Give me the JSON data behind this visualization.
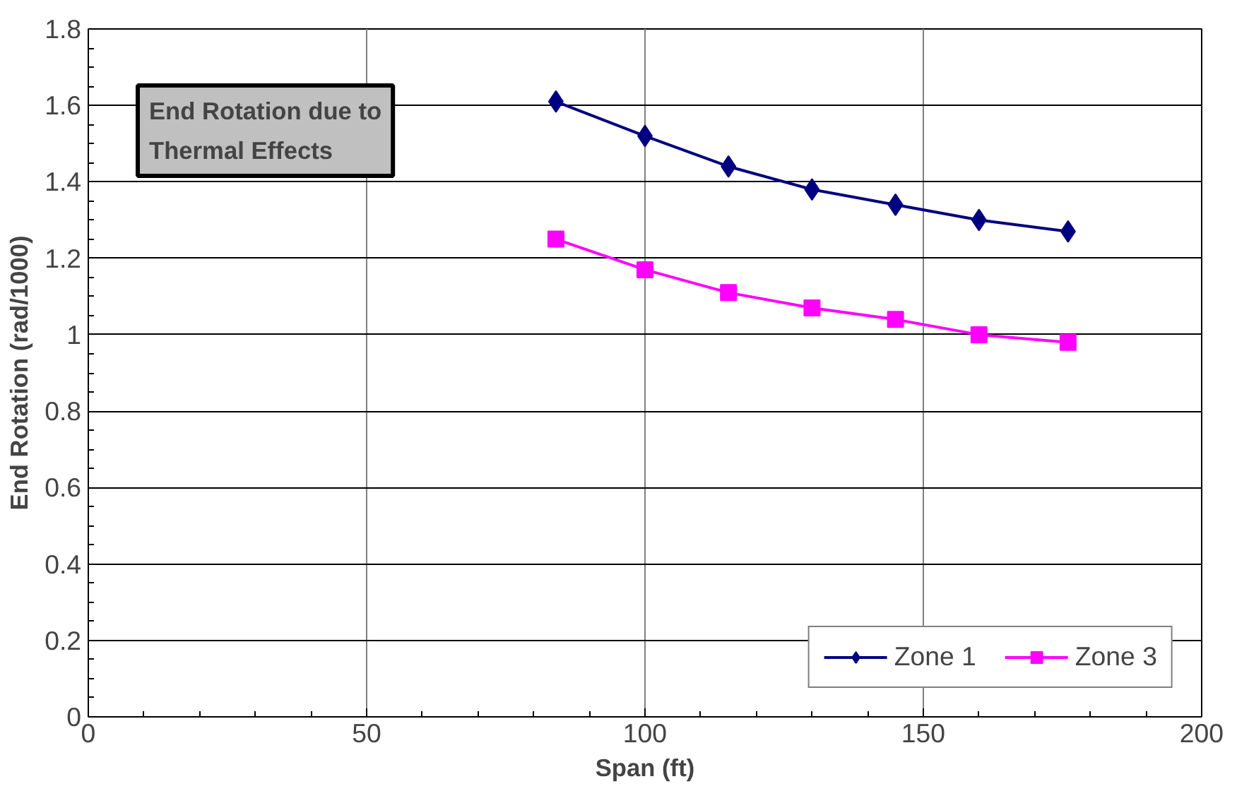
{
  "chart_data": {
    "type": "line",
    "title": "End Rotation due to\nThermal Effects",
    "xlabel": "Span (ft)",
    "ylabel": "End Rotation (rad/1000)",
    "x": [
      84,
      100,
      115,
      130,
      145,
      160,
      176
    ],
    "series": [
      {
        "name": "Zone 1",
        "color": "#000080",
        "marker": "diamond",
        "values": [
          1.61,
          1.52,
          1.44,
          1.38,
          1.34,
          1.3,
          1.27
        ]
      },
      {
        "name": "Zone 3",
        "color": "#ff00ff",
        "marker": "square",
        "values": [
          1.25,
          1.17,
          1.11,
          1.07,
          1.04,
          1.0,
          0.98
        ]
      }
    ],
    "xlim": [
      0,
      200
    ],
    "xticks": [
      0,
      50,
      100,
      150,
      200
    ],
    "ylim": [
      0,
      1.8
    ],
    "yticks": [
      0,
      0.2,
      0.4,
      0.6,
      0.8,
      1,
      1.2,
      1.4,
      1.6,
      1.8
    ],
    "grid": true,
    "legend": "bottom right",
    "line_style": "solid"
  }
}
